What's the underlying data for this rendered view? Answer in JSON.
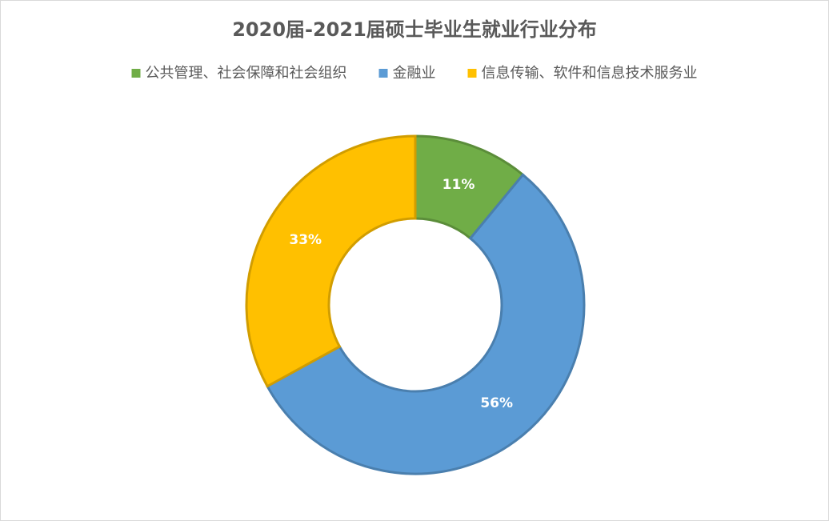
{
  "chart_data": {
    "type": "donut",
    "title": "2020届-2021届硕士毕业生就业行业分布",
    "categories": [
      "公共管理、社会保障和社会组织",
      "金融业",
      "信息传输、软件和信息技术服务业"
    ],
    "values": [
      11,
      56,
      33
    ],
    "value_labels": [
      "11%",
      "56%",
      "33%"
    ],
    "colors": [
      "#70ad47",
      "#5b9bd5",
      "#ffc000"
    ],
    "legend": "top"
  }
}
